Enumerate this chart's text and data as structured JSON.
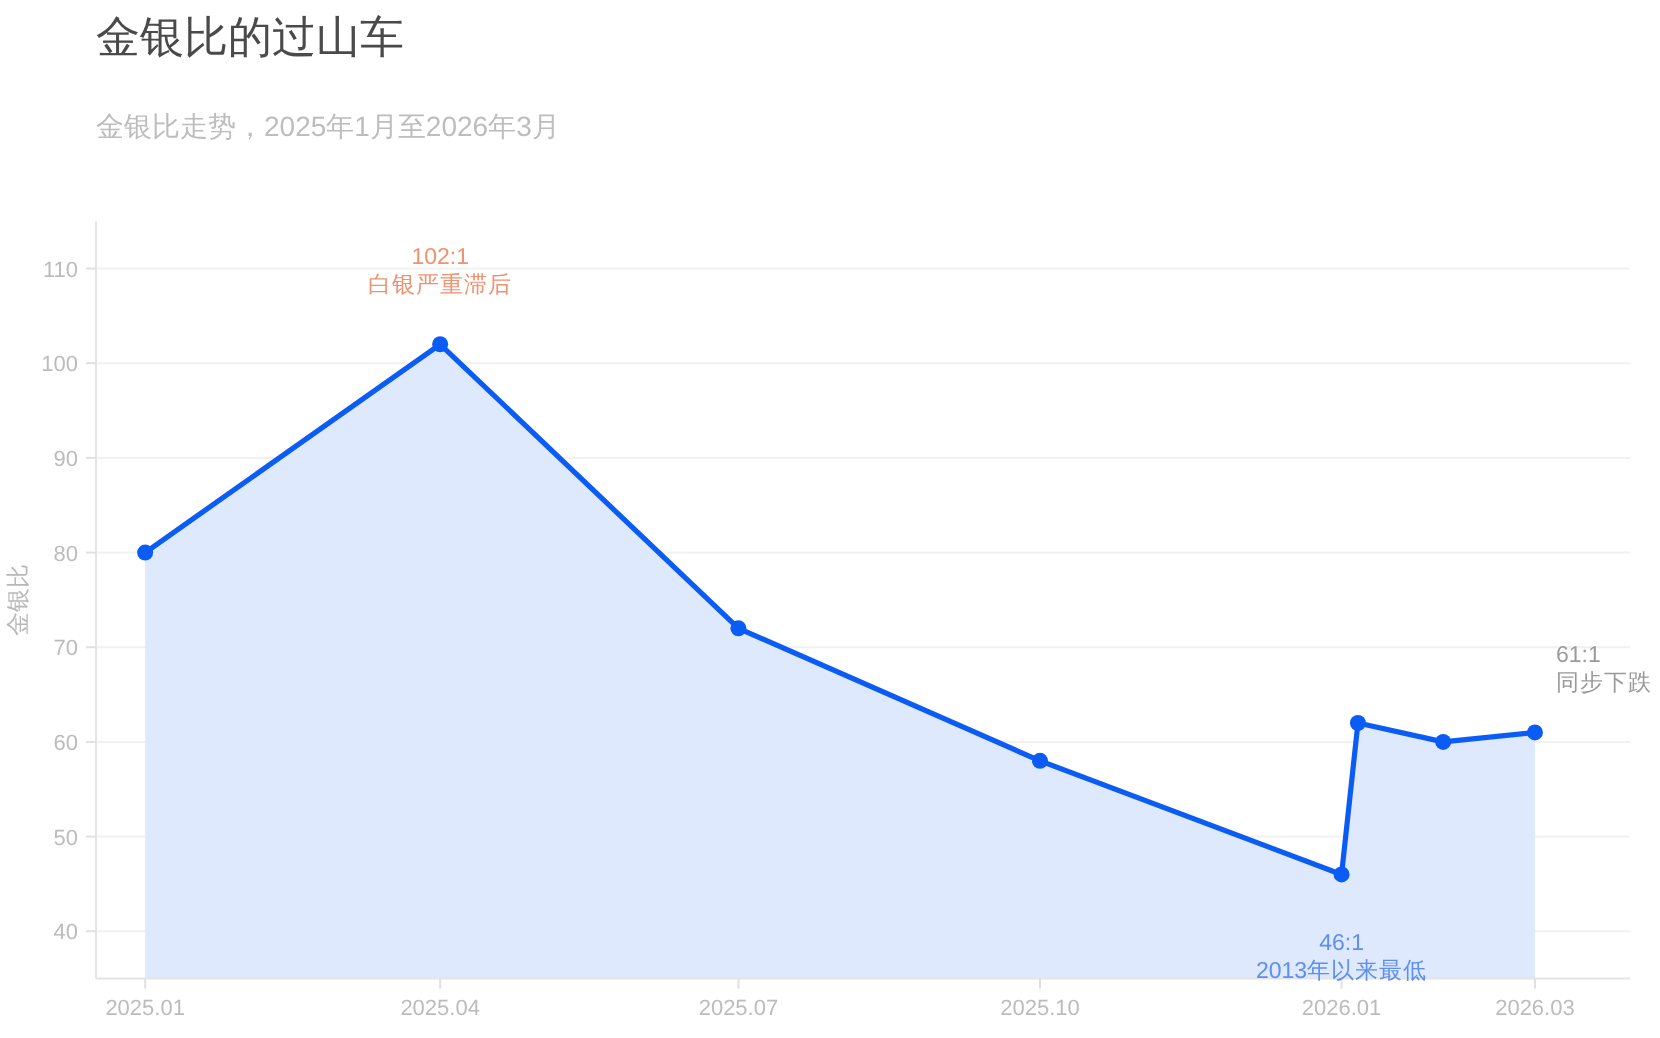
{
  "chart_data": {
    "type": "area",
    "title": "金银比的过山车",
    "subtitle": "金银比走势，2025年1月至2026年3月",
    "ylabel": "金银比",
    "x": [
      "2025-01-01",
      "2025-04-01",
      "2025-07-01",
      "2025-10-01",
      "2026-01-01",
      "2026-01-06",
      "2026-02-01",
      "2026-03-01"
    ],
    "series": [
      {
        "color": "#0b5cf5",
        "values": [
          80,
          102,
          72,
          58,
          46,
          62,
          60,
          61
        ]
      }
    ],
    "xlim": [
      "2024-12-17",
      "2026-03-30"
    ],
    "xticks": [
      {
        "value": "2025-01-01",
        "label": "2025.01"
      },
      {
        "value": "2025-04-01",
        "label": "2025.04"
      },
      {
        "value": "2025-07-01",
        "label": "2025.07"
      },
      {
        "value": "2025-10-01",
        "label": "2025.10"
      },
      {
        "value": "2026-01-01",
        "label": "2026.01"
      },
      {
        "value": "2026-03-01",
        "label": "2026.03"
      }
    ],
    "ylim": [
      35,
      115
    ],
    "yticks": [
      40,
      50,
      60,
      70,
      80,
      90,
      100,
      110
    ],
    "grid": "y",
    "marker": "circle",
    "line_style": "solid",
    "annotations": [
      {
        "text": "102:1\n白银严重滞后",
        "x": "2025-04-01",
        "y": 102
      },
      {
        "text": "46:1\n2013年以来最低",
        "x": "2026-01-01",
        "y": 46
      },
      {
        "text": "61:1\n同步下跌",
        "x": "2026-03-01",
        "y": 61
      }
    ]
  }
}
